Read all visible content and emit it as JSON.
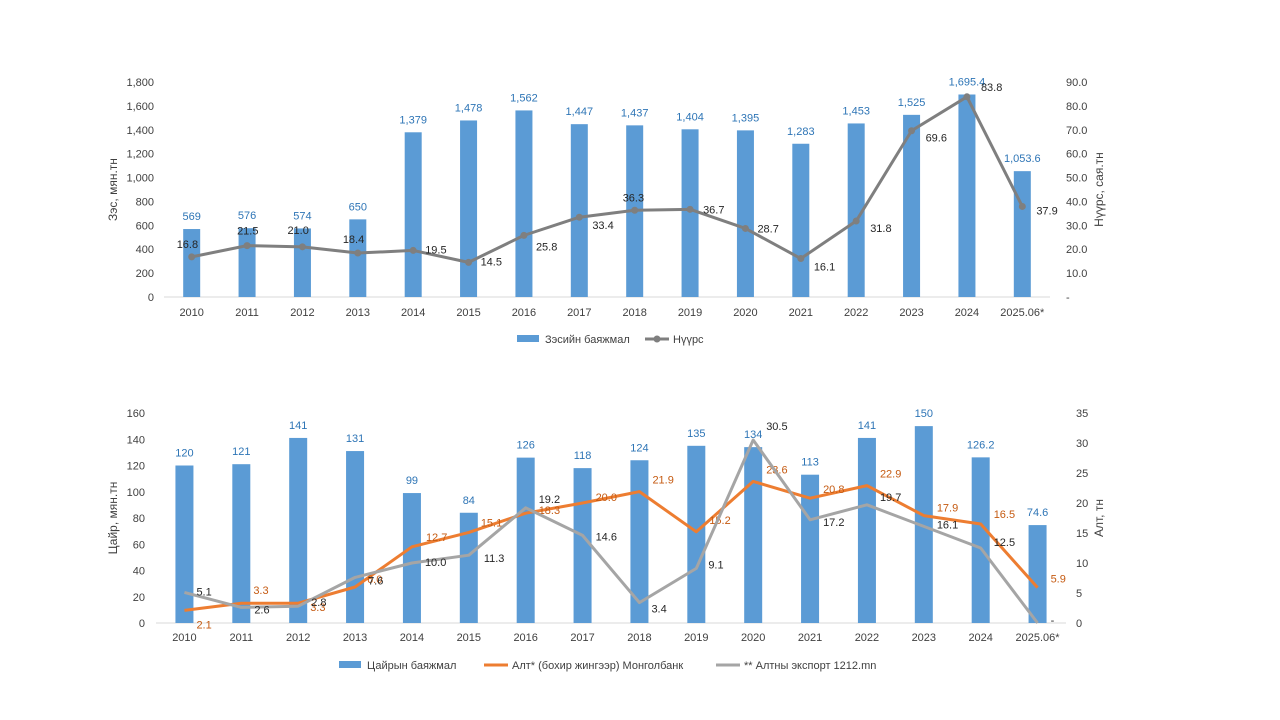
{
  "chart_data": [
    {
      "type": "bar+line",
      "categories": [
        "2010",
        "2011",
        "2012",
        "2013",
        "2014",
        "2015",
        "2016",
        "2017",
        "2018",
        "2019",
        "2020",
        "2021",
        "2022",
        "2023",
        "2024",
        "2025.06*"
      ],
      "y_left": {
        "label": "Зэс, мян.тн",
        "ylim": [
          0,
          1800
        ],
        "ticks": [
          "0",
          "200",
          "400",
          "600",
          "800",
          "1,000",
          "1,200",
          "1,400",
          "1,600",
          "1,800"
        ]
      },
      "y_right": {
        "label": "Нүүрс, сая.тн",
        "ylim": [
          0,
          90
        ],
        "ticks": [
          "-",
          "10.0",
          "20.0",
          "30.0",
          "40.0",
          "50.0",
          "60.0",
          "70.0",
          "80.0",
          "90.0"
        ]
      },
      "series": [
        {
          "name": "Зэсийн баяжмал",
          "kind": "bar",
          "axis": "left",
          "color": "#5b9bd5",
          "label_color": "#2e75b6",
          "values": [
            569,
            576,
            574,
            650,
            1379,
            1478,
            1562,
            1447,
            1437,
            1404,
            1395,
            1283,
            1453,
            1525,
            1695.4,
            1053.6
          ],
          "labels": [
            "569",
            "576",
            "574",
            "650",
            "1,379",
            "1,478",
            "1,562",
            "1,447",
            "1,437",
            "1,404",
            "1,395",
            "1,283",
            "1,453",
            "1,525",
            "1,695.4",
            "1,053.6"
          ]
        },
        {
          "name": "Нүүрс",
          "kind": "line",
          "axis": "right",
          "color": "#7f7f7f",
          "label_color": "#262626",
          "values": [
            16.8,
            21.5,
            21.0,
            18.4,
            19.5,
            14.5,
            25.8,
            33.4,
            36.3,
            36.7,
            28.7,
            16.1,
            31.8,
            69.6,
            83.8,
            37.9
          ],
          "labels": [
            "16.8",
            "21.5",
            "21.0",
            "18.4",
            "19.5",
            "14.5",
            "25.8",
            "33.4",
            "36.3",
            "36.7",
            "28.7",
            "16.1",
            "31.8",
            "69.6",
            "83.8",
            "37.9"
          ]
        }
      ],
      "legend": [
        "Зэсийн баяжмал",
        "Нүүрс"
      ]
    },
    {
      "type": "bar+line",
      "categories": [
        "2010",
        "2011",
        "2012",
        "2013",
        "2014",
        "2015",
        "2016",
        "2017",
        "2018",
        "2019",
        "2020",
        "2021",
        "2022",
        "2023",
        "2024",
        "2025.06*"
      ],
      "y_left": {
        "label": "Цайр, мян.тн",
        "ylim": [
          0,
          160
        ],
        "ticks": [
          "0",
          "20",
          "40",
          "60",
          "80",
          "100",
          "120",
          "140",
          "160"
        ]
      },
      "y_right": {
        "label": "Алт, тн",
        "ylim": [
          0,
          35
        ],
        "ticks": [
          "0",
          "5",
          "10",
          "15",
          "20",
          "25",
          "30",
          "35"
        ]
      },
      "series": [
        {
          "name": "Цайрын баяжмал",
          "kind": "bar",
          "axis": "left",
          "color": "#5b9bd5",
          "label_color": "#2e75b6",
          "values": [
            120,
            121,
            141,
            131,
            99,
            84,
            126,
            118,
            124,
            135,
            134,
            113,
            141,
            150,
            126.2,
            74.6
          ],
          "labels": [
            "120",
            "121",
            "141",
            "131",
            "99",
            "84",
            "126",
            "118",
            "124",
            "135",
            "134",
            "113",
            "141",
            "150",
            "126.2",
            "74.6"
          ]
        },
        {
          "name": "Алт* (бохир жингээр)  Монголбанк",
          "kind": "line",
          "axis": "right",
          "color": "#ed7d31",
          "label_color": "#c55a11",
          "values": [
            2.1,
            3.3,
            3.3,
            6.0,
            12.7,
            15.1,
            18.3,
            20.0,
            21.9,
            15.2,
            23.6,
            20.8,
            22.9,
            17.9,
            16.5,
            5.9
          ],
          "labels": [
            "2.1",
            "3.3",
            "3.3",
            "6.0",
            "12.7",
            "15.1",
            "18.3",
            "20.0",
            "21.9",
            "15.2",
            "23.6",
            "20.8",
            "22.9",
            "17.9",
            "16.5",
            "5.9"
          ]
        },
        {
          "name": "** Алтны экспорт 1212.mn",
          "kind": "line",
          "axis": "right",
          "color": "#a5a5a5",
          "label_color": "#262626",
          "values": [
            5.1,
            2.6,
            2.8,
            7.6,
            10.0,
            11.3,
            19.2,
            14.6,
            3.4,
            9.1,
            30.5,
            17.2,
            19.7,
            16.1,
            12.5,
            0
          ],
          "labels": [
            "5.1",
            "2.6",
            "2.8",
            "7.6",
            "10.0",
            "11.3",
            "19.2",
            "14.6",
            "3.4",
            "9.1",
            "30.5",
            "17.2",
            "19.7",
            "16.1",
            "12.5",
            "-"
          ]
        }
      ],
      "legend": [
        "Цайрын баяжмал",
        "Алт* (бохир жингээр)  Монголбанк",
        "** Алтны экспорт 1212.mn"
      ]
    }
  ]
}
